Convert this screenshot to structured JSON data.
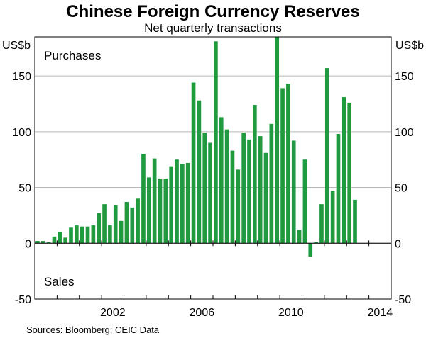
{
  "chart_data": {
    "type": "bar",
    "title": "Chinese Foreign Currency Reserves",
    "subtitle": "Net quarterly transactions",
    "y_unit_left": "US$b",
    "y_unit_right": "US$b",
    "ylim": [
      -50,
      185
    ],
    "y_ticks": [
      "150",
      "100",
      "50",
      "0",
      "-50"
    ],
    "x_ticks": [
      "2002",
      "2006",
      "2010",
      "2014"
    ],
    "annotations": {
      "positive": "Purchases",
      "negative": "Sales"
    },
    "source": "Sources:   Bloomberg; CEIC Data",
    "bar_color": "#1f9a3e",
    "grid": "horizontal",
    "series": [
      {
        "values": [
          2,
          2,
          1,
          6,
          10,
          5,
          14,
          16,
          15,
          15,
          16,
          27,
          35,
          16,
          34,
          20,
          37,
          32,
          40,
          80,
          59,
          76,
          58,
          58,
          69,
          75,
          71,
          72,
          144,
          128,
          99,
          90,
          181,
          113,
          102,
          83,
          66,
          99,
          93,
          124,
          96,
          81,
          107,
          185,
          139,
          143,
          92,
          12,
          75,
          -12,
          1,
          35,
          157,
          47,
          98,
          131,
          126,
          39
        ]
      }
    ]
  }
}
